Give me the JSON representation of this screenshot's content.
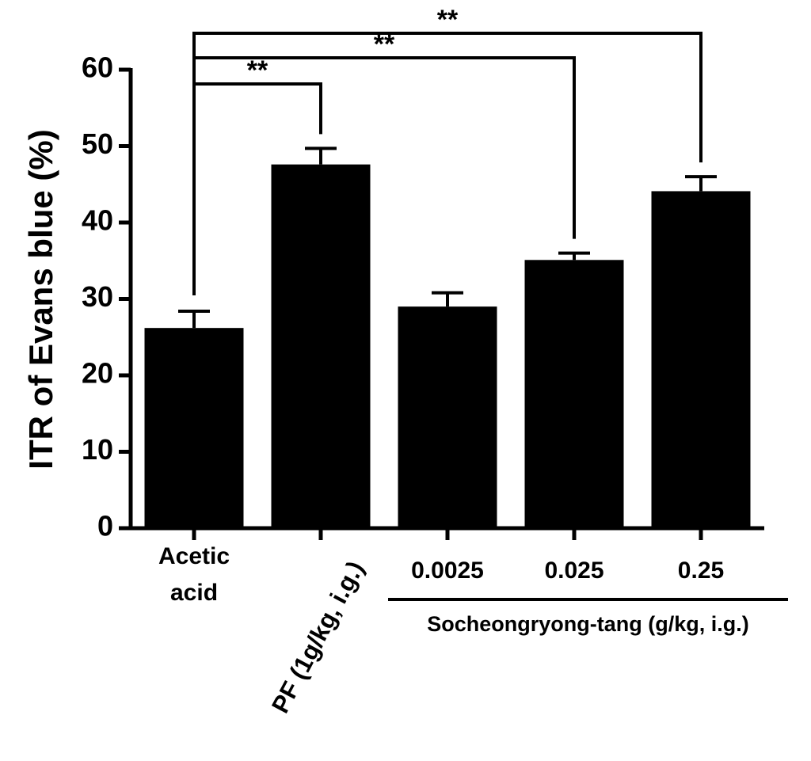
{
  "chart_data": {
    "type": "bar",
    "y_label": "ITR of Evans blue (%)",
    "categories": [
      "Acetic acid",
      "PF (1g/kg, i.g.)",
      "0.0025",
      "0.025",
      "0.25"
    ],
    "values": [
      26.2,
      47.6,
      29.0,
      35.1,
      44.1
    ],
    "errors": [
      2.2,
      2.1,
      1.8,
      0.9,
      1.9
    ],
    "color": "#000000",
    "ylim": [
      0,
      60
    ],
    "yticks": [
      0,
      10,
      20,
      30,
      40,
      50,
      60
    ],
    "group_label": "Socheongryong-tang (g/kg, i.g.)",
    "comparisons": [
      {
        "label": "**",
        "between": [
          "Acetic acid",
          "PF (1g/kg, i.g.)"
        ]
      },
      {
        "label": "**",
        "between": [
          "Acetic acid",
          "0.025"
        ]
      },
      {
        "label": "**",
        "between": [
          "Acetic acid",
          "0.25"
        ]
      }
    ]
  }
}
